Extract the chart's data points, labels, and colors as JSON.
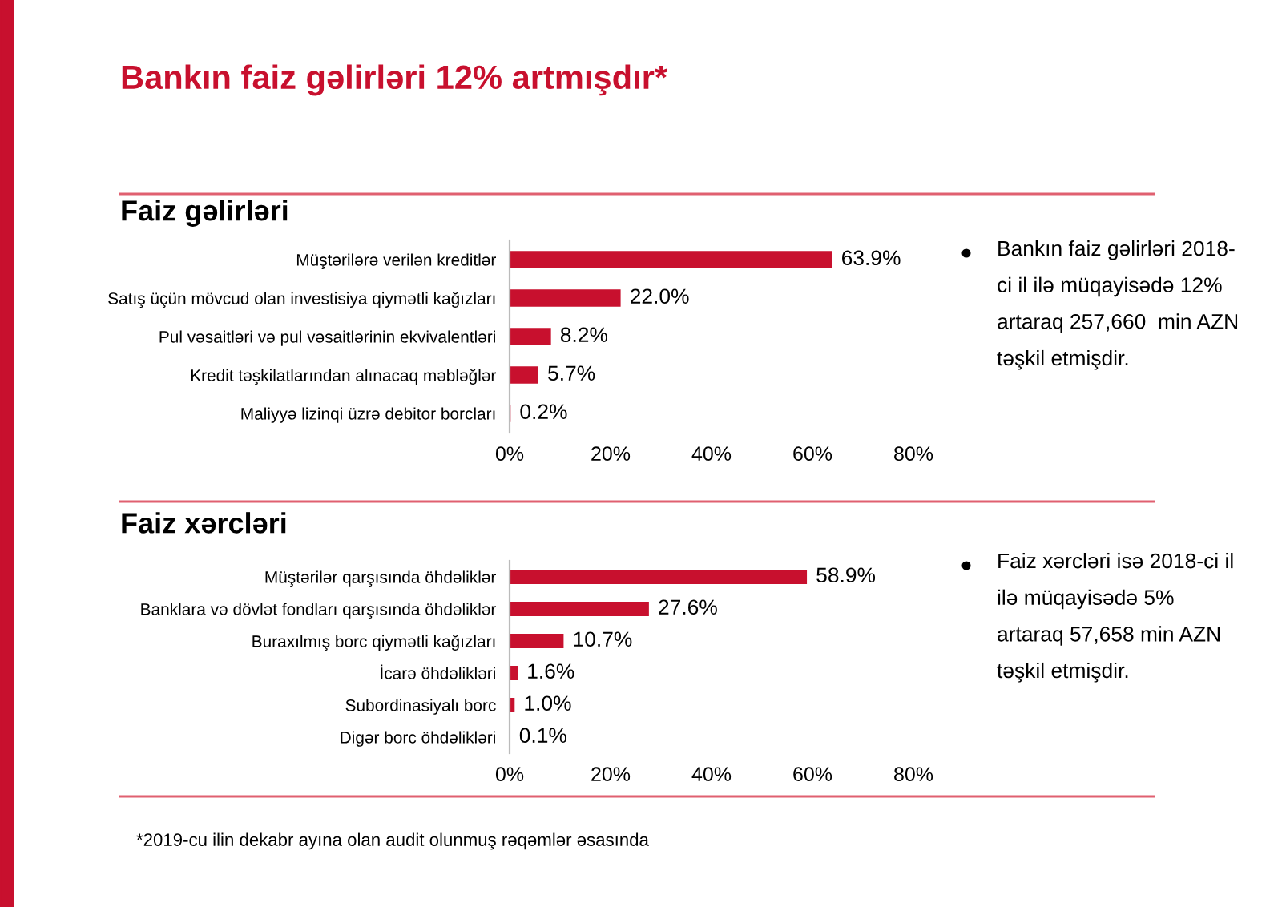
{
  "chart_data": [
    {
      "type": "other",
      "title": "Bankın faiz gəlirləri 12% artmışdır*",
      "annotations": [
        "*2019-cu ilin dekabr ayına olan audit olunmuş rəqəmlər əsasında"
      ]
    },
    {
      "type": "bar",
      "orientation": "horizontal",
      "title": "Faiz gəlirləri",
      "categories": [
        "Müştərilərə verilən kreditlər",
        "Satış üçün mövcud olan investisiya qiymətli kağızları",
        "Pul vəsaitləri və pul vəsaitlərinin ekvivalentləri",
        "Kredit təşkilatlarından alınacaq məbləğlər",
        "Maliyyə lizinqi üzrə debitor borcları"
      ],
      "values": [
        63.9,
        22.0,
        8.2,
        5.7,
        0.2
      ],
      "value_labels": [
        "63.9%",
        "22.0%",
        "8.2%",
        "5.7%",
        "0.2%"
      ],
      "color": "#c8102e",
      "xlim": [
        0,
        80
      ],
      "xticks": [
        {
          "value": 0,
          "label": "0%"
        },
        {
          "value": 20,
          "label": "20%"
        },
        {
          "value": 40,
          "label": "40%"
        },
        {
          "value": 60,
          "label": "60%"
        },
        {
          "value": 80,
          "label": "80%"
        }
      ]
    },
    {
      "type": "other",
      "annotations": [
        "Bankın faiz gəlirləri 2018-\nci il ilə müqayisədə 12%\nartaraq 257,660  min AZN\ntəşkil etmişdir."
      ]
    },
    {
      "type": "bar",
      "orientation": "horizontal",
      "title": "Faiz xərcləri",
      "categories": [
        "Müştərilər qarşısında öhdəliklər",
        "Banklara və dövlət fondları qarşısında öhdəliklər",
        "Buraxılmış borc qiymətli kağızları",
        "İcarə öhdəlikləri",
        "Subordinasiyalı borc",
        "Digər borc öhdəlikləri"
      ],
      "values": [
        58.9,
        27.6,
        10.7,
        1.6,
        1.0,
        0.1
      ],
      "value_labels": [
        "58.9%",
        "27.6%",
        "10.7%",
        "1.6%",
        "1.0%",
        "0.1%"
      ],
      "color": "#c8102e",
      "xlim": [
        0,
        80
      ],
      "xticks": [
        {
          "value": 0,
          "label": "0%"
        },
        {
          "value": 20,
          "label": "20%"
        },
        {
          "value": 40,
          "label": "40%"
        },
        {
          "value": 60,
          "label": "60%"
        },
        {
          "value": 80,
          "label": "80%"
        }
      ]
    },
    {
      "type": "other",
      "annotations": [
        "Faiz xərcləri isə 2018-ci il\nilə müqayisədə 5%\nartaraq 57,658 min AZN\ntəşkil etmişdir."
      ]
    }
  ]
}
